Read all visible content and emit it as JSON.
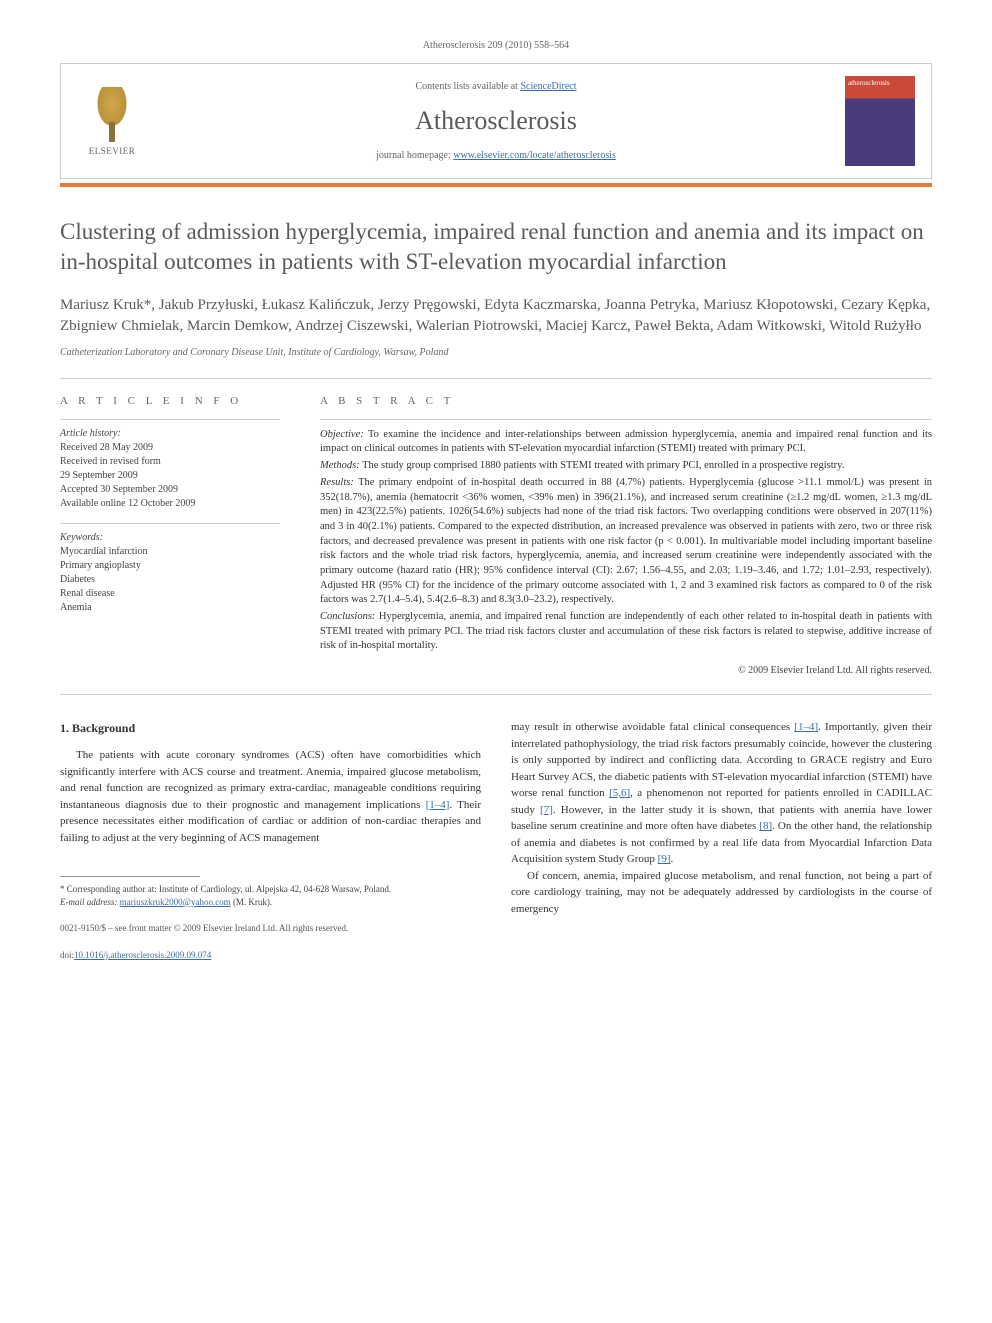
{
  "header": {
    "citation": "Atherosclerosis 209 (2010) 558–564",
    "contents_prefix": "Contents lists available at ",
    "contents_link": "ScienceDirect",
    "journal_title": "Atherosclerosis",
    "homepage_prefix": "journal homepage: ",
    "homepage_link": "www.elsevier.com/locate/atherosclerosis",
    "elsevier_label": "ELSEVIER",
    "cover_label": "atherosclerosis"
  },
  "article": {
    "title": "Clustering of admission hyperglycemia, impaired renal function and anemia and its impact on in-hospital outcomes in patients with ST-elevation myocardial infarction",
    "authors": "Mariusz Kruk*, Jakub Przyłuski, Łukasz Kalińczuk, Jerzy Pręgowski, Edyta Kaczmarska, Joanna Petryka, Mariusz Kłopotowski, Cezary Kępka, Zbigniew Chmielak, Marcin Demkow, Andrzej Ciszewski, Walerian Piotrowski, Maciej Karcz, Paweł Bekta, Adam Witkowski, Witold Rużyłło",
    "affiliation": "Catheterization Laboratory and Coronary Disease Unit, Institute of Cardiology, Warsaw, Poland"
  },
  "info": {
    "heading": "A R T I C L E   I N F O",
    "history_label": "Article history:",
    "received": "Received 28 May 2009",
    "revised": "Received in revised form",
    "revised_date": "29 September 2009",
    "accepted": "Accepted 30 September 2009",
    "online": "Available online 12 October 2009",
    "keywords_label": "Keywords:",
    "kw1": "Myocardial infarction",
    "kw2": "Primary angioplasty",
    "kw3": "Diabetes",
    "kw4": "Renal disease",
    "kw5": "Anemia"
  },
  "abstract": {
    "heading": "A B S T R A C T",
    "objective_label": "Objective:",
    "objective": " To examine the incidence and inter-relationships between admission hyperglycemia, anemia and impaired renal function and its impact on clinical outcomes in patients with ST-elevation myocardial infarction (STEMI) treated with primary PCI.",
    "methods_label": "Methods:",
    "methods": " The study group comprised 1880 patients with STEMI treated with primary PCI, enrolled in a prospective registry.",
    "results_label": "Results:",
    "results": " The primary endpoint of in-hospital death occurred in 88 (4.7%) patients. Hyperglycemia (glucose >11.1 mmol/L) was present in 352(18.7%), anemia (hematocrit <36% women, <39% men) in 396(21.1%), and increased serum creatinine (≥1.2 mg/dL women, ≥1.3 mg/dL men) in 423(22.5%) patients. 1026(54.6%) subjects had none of the triad risk factors. Two overlapping conditions were observed in 207(11%) and 3 in 40(2.1%) patients. Compared to the expected distribution, an increased prevalence was observed in patients with zero, two or three risk factors, and decreased prevalence was present in patients with one risk factor (p < 0.001). In multivariable model including important baseline risk factors and the whole triad risk factors, hyperglycemia, anemia, and increased serum creatinine were independently associated with the primary outcome (hazard ratio (HR); 95% confidence interval (CI): 2.67; 1.56–4.55, and 2.03; 1.19–3.46, and 1.72; 1.01–2.93, respectively). Adjusted HR (95% CI) for the incidence of the primary outcome associated with 1, 2 and 3 examined risk factors as compared to 0 of the risk factors was 2.7(1.4–5.4), 5.4(2.6–8.3) and 8.3(3.0–23.2), respectively.",
    "conclusions_label": "Conclusions:",
    "conclusions": " Hyperglycemia, anemia, and impaired renal function are independently of each other related to in-hospital death in patients with STEMI treated with primary PCI. The triad risk factors cluster and accumulation of these risk factors is related to stepwise, additive increase of risk of in-hospital mortality.",
    "copyright": "© 2009 Elsevier Ireland Ltd. All rights reserved."
  },
  "body": {
    "section_heading": "1. Background",
    "col1_p1": "The patients with acute coronary syndromes (ACS) often have comorbidities which significantly interfere with ACS course and treatment. Anemia, impaired glucose metabolism, and renal function are recognized as primary extra-cardiac, manageable conditions requiring instantaneous diagnosis due to their prognostic and management implications ",
    "col1_ref1": "[1–4]",
    "col1_p1_cont": ". Their presence necessitates either modification of cardiac or addition of non-cardiac therapies and failing to adjust at the very beginning of ACS management",
    "col2_p1": "may result in otherwise avoidable fatal clinical consequences ",
    "col2_ref1": "[1–4]",
    "col2_p1_cont": ". Importantly, given their interrelated pathophysiology, the triad risk factors presumably coincide, however the clustering is only supported by indirect and conflicting data. According to GRACE registry and Euro Heart Survey ACS, the diabetic patients with ST-elevation myocardial infarction (STEMI) have worse renal function ",
    "col2_ref2": "[5,6]",
    "col2_p1_cont2": ", a phenomenon not reported for patients enrolled in CADILLAC study ",
    "col2_ref3": "[7]",
    "col2_p1_cont3": ". However, in the latter study it is shown, that patients with anemia have lower baseline serum creatinine and more often have diabetes ",
    "col2_ref4": "[8]",
    "col2_p1_cont4": ". On the other hand, the relationship of anemia and diabetes is not confirmed by a real life data from Myocardial Infarction Data Acquisition system Study Group ",
    "col2_ref5": "[9]",
    "col2_p1_cont5": ".",
    "col2_p2": "Of concern, anemia, impaired glucose metabolism, and renal function, not being a part of core cardiology training, may not be adequately addressed by cardiologists in the course of emergency"
  },
  "footnotes": {
    "corresponding_label": "* Corresponding author at: ",
    "corresponding": "Institute of Cardiology, ul. Alpejska 42, 04-628 Warsaw, Poland.",
    "email_label": "E-mail address: ",
    "email": "mariuszkruk2000@yahoo.com",
    "email_suffix": " (M. Kruk)."
  },
  "footer": {
    "issn": "0021-9150/$ – see front matter © 2009 Elsevier Ireland Ltd. All rights reserved.",
    "doi_label": "doi:",
    "doi": "10.1016/j.atherosclerosis.2009.09.074"
  },
  "colors": {
    "link": "#3a6ea5",
    "orange_bar": "#e67838",
    "cover_top": "#c94a3b",
    "cover_bottom": "#4a3b7a",
    "text": "#333333",
    "muted": "#666666"
  }
}
